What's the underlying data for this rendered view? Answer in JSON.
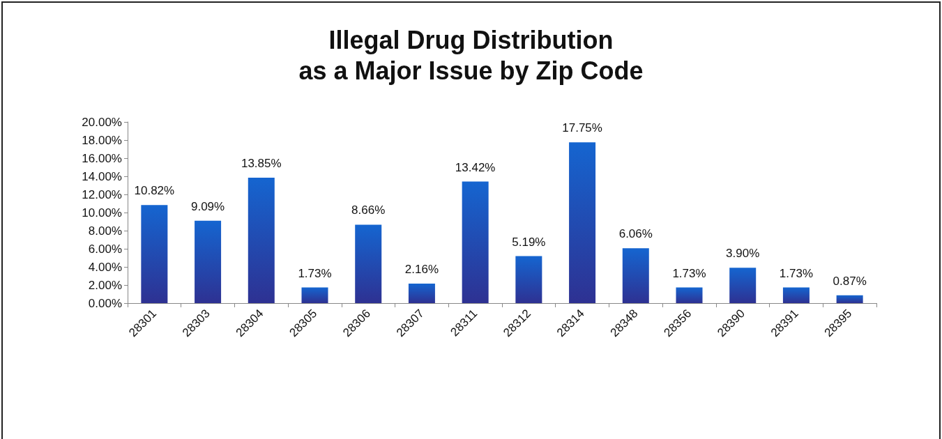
{
  "chart_data": {
    "type": "bar",
    "title": "Illegal Drug Distribution\nas a Major Issue by Zip Code",
    "categories": [
      "28301",
      "28303",
      "28304",
      "28305",
      "28306",
      "28307",
      "28311",
      "28312",
      "28314",
      "28348",
      "28356",
      "28390",
      "28391",
      "28395"
    ],
    "values": [
      10.82,
      9.09,
      13.85,
      1.73,
      8.66,
      2.16,
      13.42,
      5.19,
      17.75,
      6.06,
      1.73,
      3.9,
      1.73,
      0.87
    ],
    "value_labels": [
      "10.82%",
      "9.09%",
      "13.85%",
      "1.73%",
      "8.66%",
      "2.16%",
      "13.42%",
      "5.19%",
      "17.75%",
      "6.06%",
      "1.73%",
      "3.90%",
      "1.73%",
      "0.87%"
    ],
    "color": "#1565d0",
    "ylim": [
      0,
      20
    ],
    "yticks": [
      {
        "value": 0,
        "label": "0.00%"
      },
      {
        "value": 2,
        "label": "2.00%"
      },
      {
        "value": 4,
        "label": "4.00%"
      },
      {
        "value": 6,
        "label": "6.00%"
      },
      {
        "value": 8,
        "label": "8.00%"
      },
      {
        "value": 10,
        "label": "10.00%"
      },
      {
        "value": 12,
        "label": "12.00%"
      },
      {
        "value": 14,
        "label": "14.00%"
      },
      {
        "value": 16,
        "label": "16.00%"
      },
      {
        "value": 18,
        "label": "18.00%"
      },
      {
        "value": 20,
        "label": "20.00%"
      }
    ],
    "grid": false
  }
}
